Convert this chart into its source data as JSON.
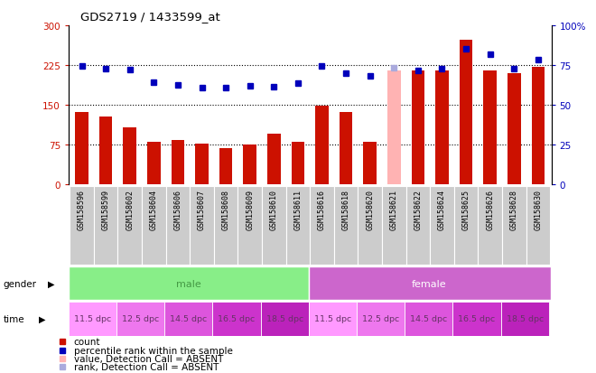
{
  "title": "GDS2719 / 1433599_at",
  "samples": [
    "GSM158596",
    "GSM158599",
    "GSM158602",
    "GSM158604",
    "GSM158606",
    "GSM158607",
    "GSM158608",
    "GSM158609",
    "GSM158610",
    "GSM158611",
    "GSM158616",
    "GSM158618",
    "GSM158620",
    "GSM158621",
    "GSM158622",
    "GSM158624",
    "GSM158625",
    "GSM158626",
    "GSM158628",
    "GSM158630"
  ],
  "count_values": [
    137,
    128,
    108,
    80,
    83,
    76,
    68,
    75,
    95,
    80,
    148,
    137,
    80,
    215,
    215,
    215,
    272,
    215,
    210,
    222
  ],
  "count_absent": [
    false,
    false,
    false,
    false,
    false,
    false,
    false,
    false,
    false,
    false,
    false,
    false,
    false,
    true,
    false,
    false,
    false,
    false,
    false,
    false
  ],
  "rank_values": [
    223,
    218,
    217,
    193,
    188,
    183,
    183,
    185,
    184,
    190,
    223,
    210,
    205,
    220,
    215,
    218,
    255,
    245,
    218,
    235
  ],
  "rank_absent": [
    false,
    false,
    false,
    false,
    false,
    false,
    false,
    false,
    false,
    false,
    false,
    false,
    false,
    true,
    false,
    false,
    false,
    false,
    false,
    false
  ],
  "ylim_left": [
    0,
    300
  ],
  "ylim_right": [
    0,
    100
  ],
  "yticks_left": [
    0,
    75,
    150,
    225,
    300
  ],
  "yticks_right": [
    0,
    25,
    50,
    75,
    100
  ],
  "bar_color": "#CC1100",
  "bar_absent_color": "#FFB3B3",
  "dot_color": "#0000BB",
  "dot_absent_color": "#AAAADD",
  "male_color": "#88EE88",
  "female_color": "#CC66CC",
  "time_colors": [
    "#FF99FF",
    "#EE77EE",
    "#DD55DD",
    "#CC33CC",
    "#BB22BB"
  ],
  "bg_color": "#ffffff",
  "row_bg_color": "#CCCCCC",
  "gender_text_color_male": "#449944",
  "gender_text_color_female": "#884488",
  "time_text_color": "#663366"
}
